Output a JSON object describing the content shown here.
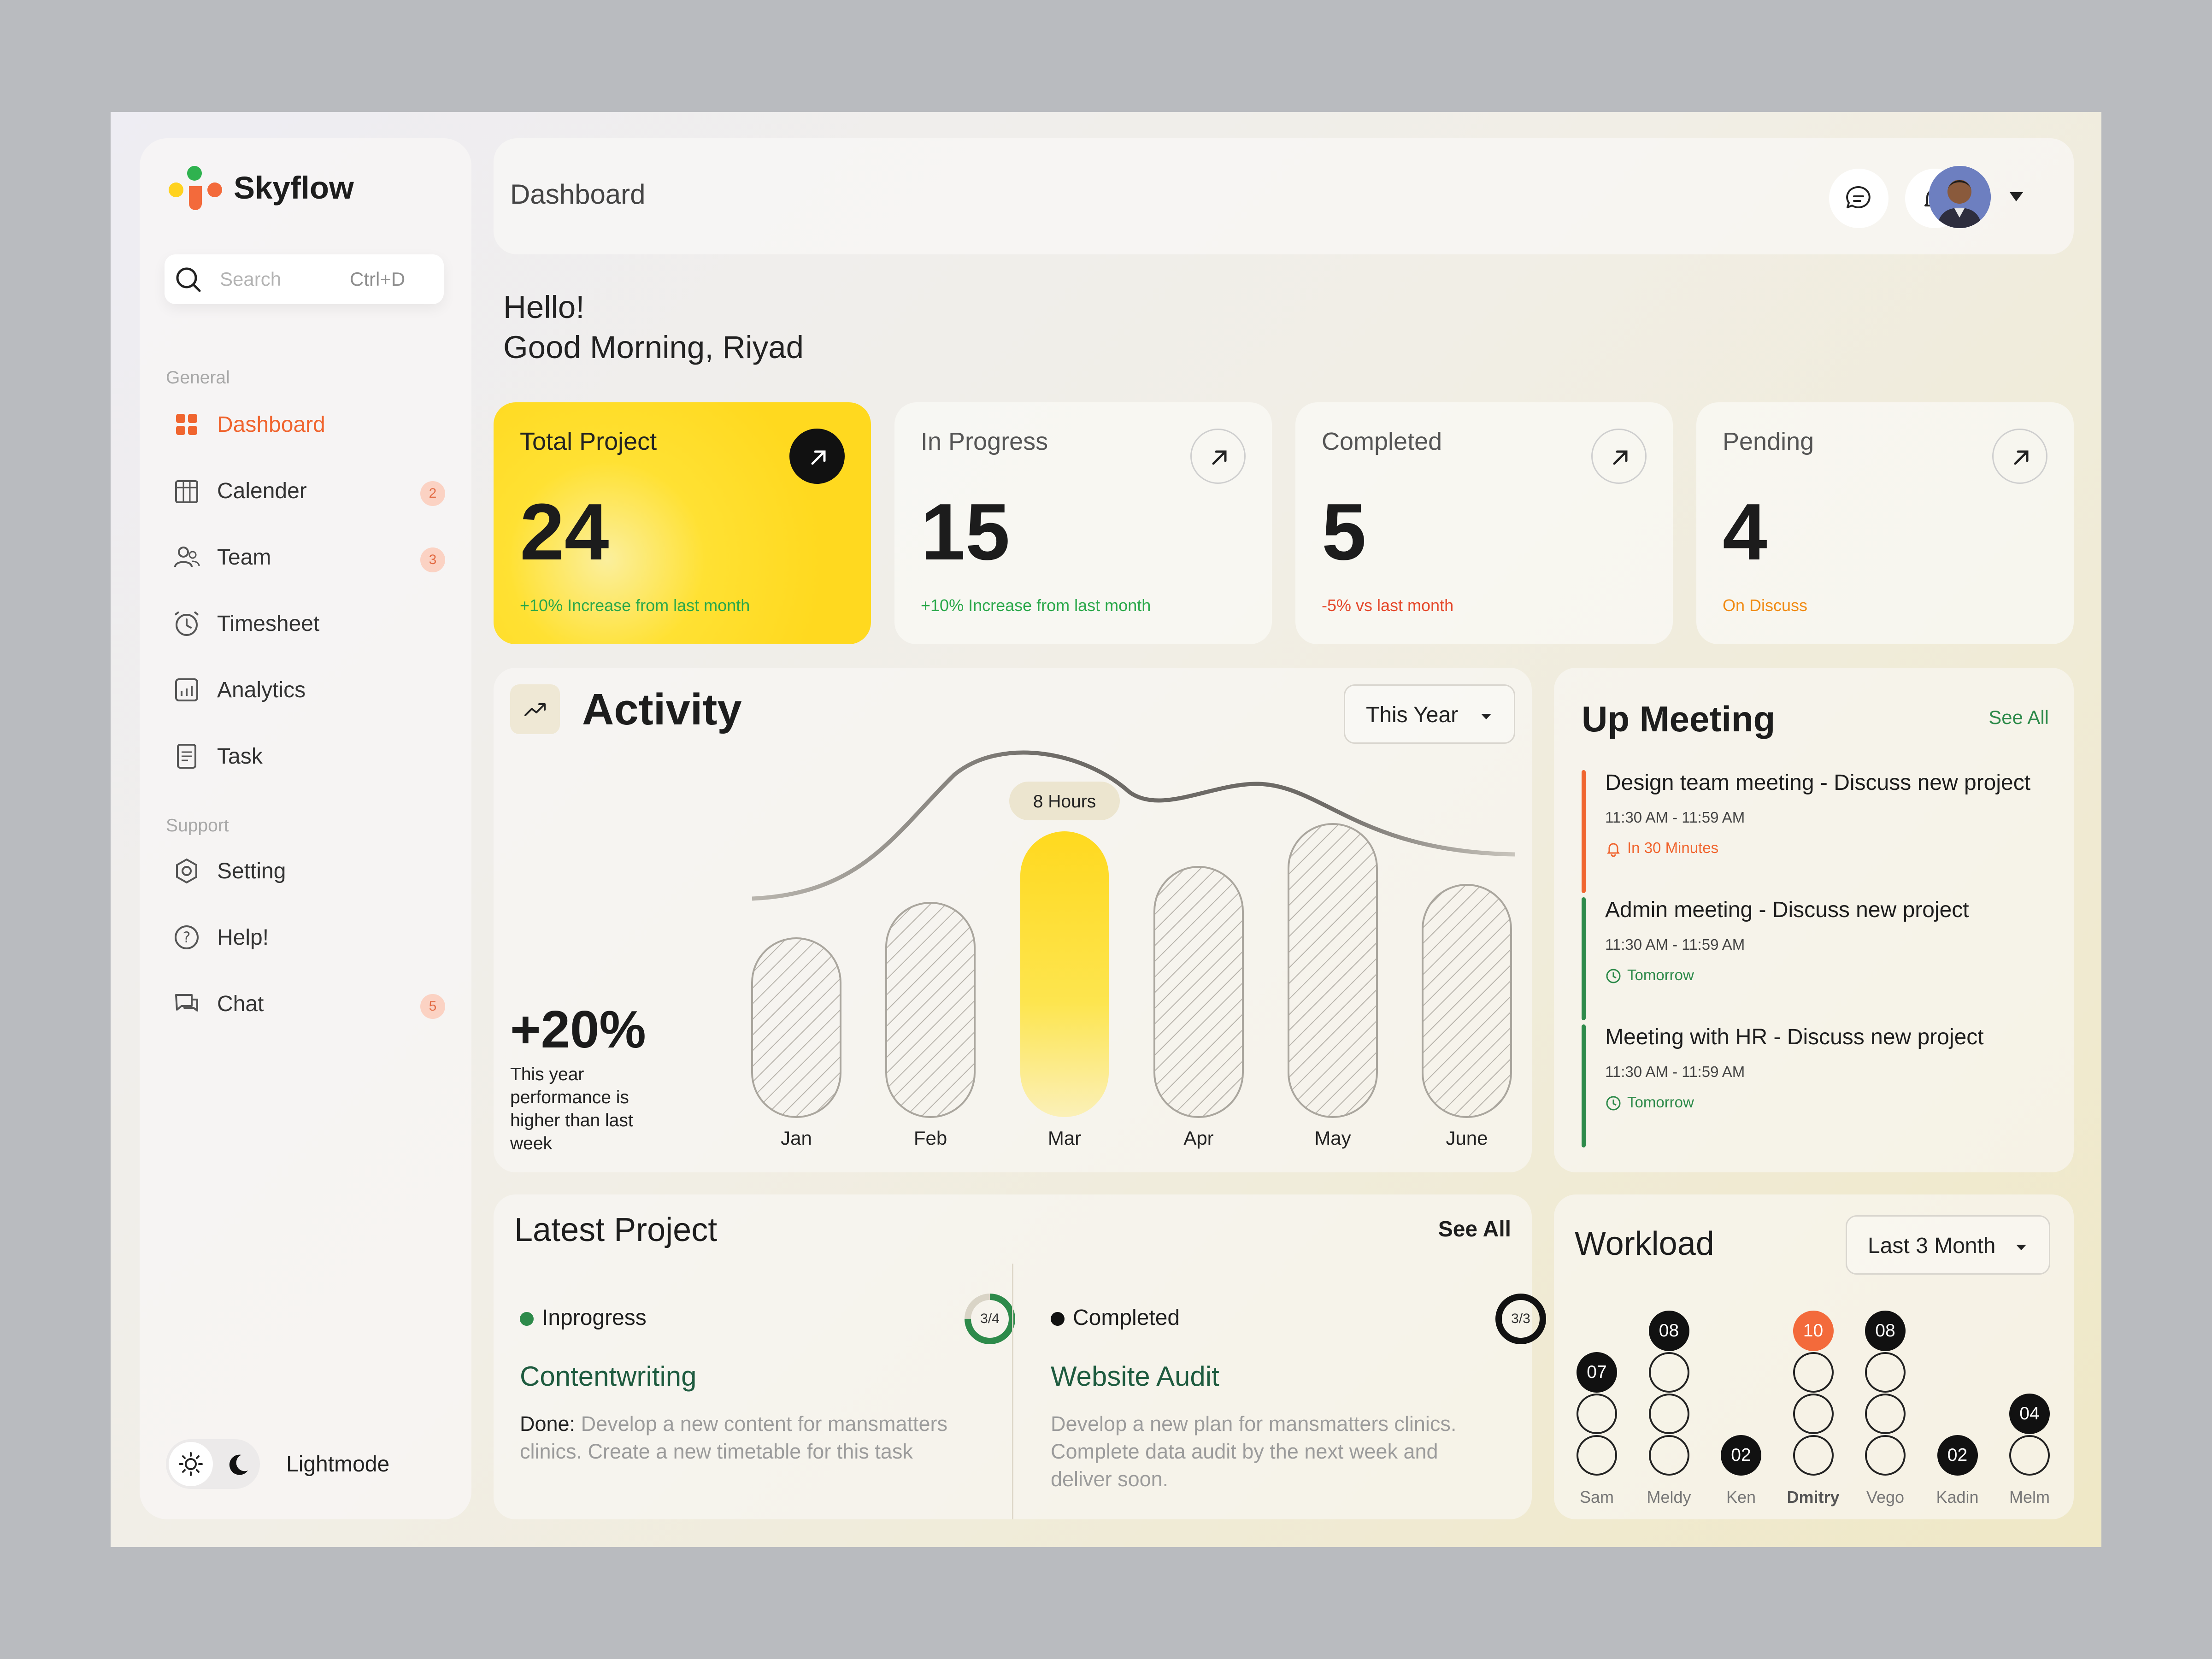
{
  "brand": "Skyflow",
  "search": {
    "placeholder": "Search",
    "shortcut": "Ctrl+D"
  },
  "sidebar": {
    "general_label": "General",
    "support_label": "Support",
    "items": [
      {
        "label": "Dashboard",
        "icon": "grid-icon",
        "active": true
      },
      {
        "label": "Calender",
        "icon": "calendar-icon",
        "badge": "2"
      },
      {
        "label": "Team",
        "icon": "team-icon",
        "badge": "3"
      },
      {
        "label": "Timesheet",
        "icon": "alarm-clock-icon"
      },
      {
        "label": "Analytics",
        "icon": "analytics-icon"
      },
      {
        "label": "Task",
        "icon": "task-icon"
      }
    ],
    "support_items": [
      {
        "label": "Setting",
        "icon": "settings-icon"
      },
      {
        "label": "Help!",
        "icon": "help-icon"
      },
      {
        "label": "Chat",
        "icon": "chat-icon",
        "badge": "5"
      }
    ],
    "mode_label": "Lightmode"
  },
  "header": {
    "title": "Dashboard"
  },
  "greeting": {
    "line1": "Hello!",
    "line2": "Good Morning, Riyad"
  },
  "stats": [
    {
      "title": "Total Project",
      "value": "24",
      "sub": "+10% Increase from last month",
      "sub_color": "#2aa84a"
    },
    {
      "title": "In Progress",
      "value": "15",
      "sub": "+10% Increase from last month",
      "sub_color": "#2aa84a"
    },
    {
      "title": "Completed",
      "value": "5",
      "sub": "-5% vs last month",
      "sub_color": "#e5482b"
    },
    {
      "title": "Pending",
      "value": "4",
      "sub": "On Discuss",
      "sub_color": "#f08a12"
    }
  ],
  "activity": {
    "title": "Activity",
    "range": "This Year",
    "percent": "+20%",
    "desc": "This year performance is higher than last week",
    "highlight_label": "8 Hours"
  },
  "chart_data": {
    "type": "bar",
    "categories": [
      "Jan",
      "Feb",
      "Mar",
      "Apr",
      "May",
      "June"
    ],
    "values": [
      5,
      6,
      8,
      7,
      8.2,
      6.5
    ],
    "highlight_index": 2,
    "highlight_label": "8 Hours"
  },
  "meetings": {
    "title": "Up Meeting",
    "see_all": "See All",
    "items": [
      {
        "title": "Design team meeting - Discuss new project",
        "time": "11:30 AM - 11:59 AM",
        "when": "In 30 Minutes",
        "color": "#f0652f"
      },
      {
        "title": "Admin meeting - Discuss new project",
        "time": "11:30 AM - 11:59 AM",
        "when": "Tomorrow",
        "color": "#2d8a4a"
      },
      {
        "title": "Meeting with HR - Discuss new project",
        "time": "11:30 AM - 11:59 AM",
        "when": "Tomorrow",
        "color": "#2d8a4a"
      }
    ]
  },
  "latest": {
    "title": "Latest Project",
    "see_all": "See All",
    "projects": [
      {
        "status": "Inprogress",
        "progress": "3/4",
        "name": "Contentwriting",
        "done_label": "Done:",
        "desc": " Develop a new content for mansmatters clinics. Create a new timetable for this task"
      },
      {
        "status": "Completed",
        "progress": "3/3",
        "name": "Website Audit",
        "done_label": "",
        "desc": "Develop a new plan for mansmatters clinics. Complete data audit by the next week and deliver soon."
      }
    ]
  },
  "workload": {
    "title": "Workload",
    "range": "Last 3 Month",
    "people": [
      {
        "name": "Sam",
        "count": "07"
      },
      {
        "name": "Meldy",
        "count": "08"
      },
      {
        "name": "Ken",
        "count": "02"
      },
      {
        "name": "Dmitry",
        "count": "10"
      },
      {
        "name": "Vego",
        "count": "08"
      },
      {
        "name": "Kadin",
        "count": "02"
      },
      {
        "name": "Melm",
        "count": "04"
      }
    ]
  }
}
